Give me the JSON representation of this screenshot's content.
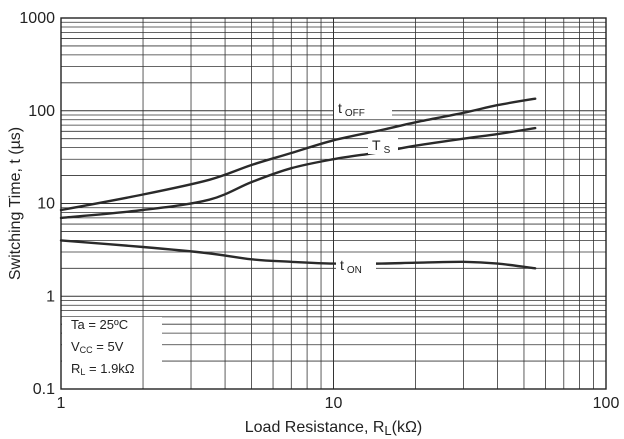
{
  "chart_data": {
    "type": "line",
    "xscale": "log",
    "yscale": "log",
    "xlim": [
      1,
      100
    ],
    "ylim": [
      0.1,
      1000
    ],
    "grid": true,
    "xticks": [
      "1",
      "10",
      "100"
    ],
    "yticks": [
      "0.1",
      "1",
      "10",
      "100",
      "1000"
    ],
    "xlabel": {
      "main": "Load Resistance, R",
      "sub": "L",
      "unit": "(kΩ)"
    },
    "ylabel": "Switching Time, t (µs)",
    "series": [
      {
        "name": {
          "main": "t",
          "sub": "OFF"
        },
        "x": [
          1,
          2,
          3.5,
          5,
          7,
          10,
          15,
          20,
          30,
          40,
          55
        ],
        "y": [
          8.5,
          12.5,
          18,
          26,
          35,
          48,
          62,
          75,
          95,
          115,
          135
        ]
      },
      {
        "name": {
          "main": "T",
          "sub": "S"
        },
        "x": [
          1,
          2,
          3.5,
          5,
          7,
          10,
          15,
          20,
          30,
          40,
          55
        ],
        "y": [
          7,
          8.5,
          11,
          17,
          24,
          30,
          36,
          42,
          50,
          56,
          65
        ]
      },
      {
        "name": {
          "main": "t",
          "sub": "ON"
        },
        "x": [
          1,
          2,
          3.5,
          5,
          7,
          10,
          15,
          20,
          30,
          40,
          55
        ],
        "y": [
          4.0,
          3.4,
          2.9,
          2.5,
          2.35,
          2.25,
          2.25,
          2.3,
          2.35,
          2.25,
          2.0
        ]
      }
    ],
    "conditions": [
      {
        "main": "Ta = 25ºC",
        "sub": ""
      },
      {
        "main": "V",
        "sub": "CC",
        "tail": " = 5V"
      },
      {
        "main": "R",
        "sub": "L",
        "tail": " = 1.9kΩ"
      }
    ]
  }
}
